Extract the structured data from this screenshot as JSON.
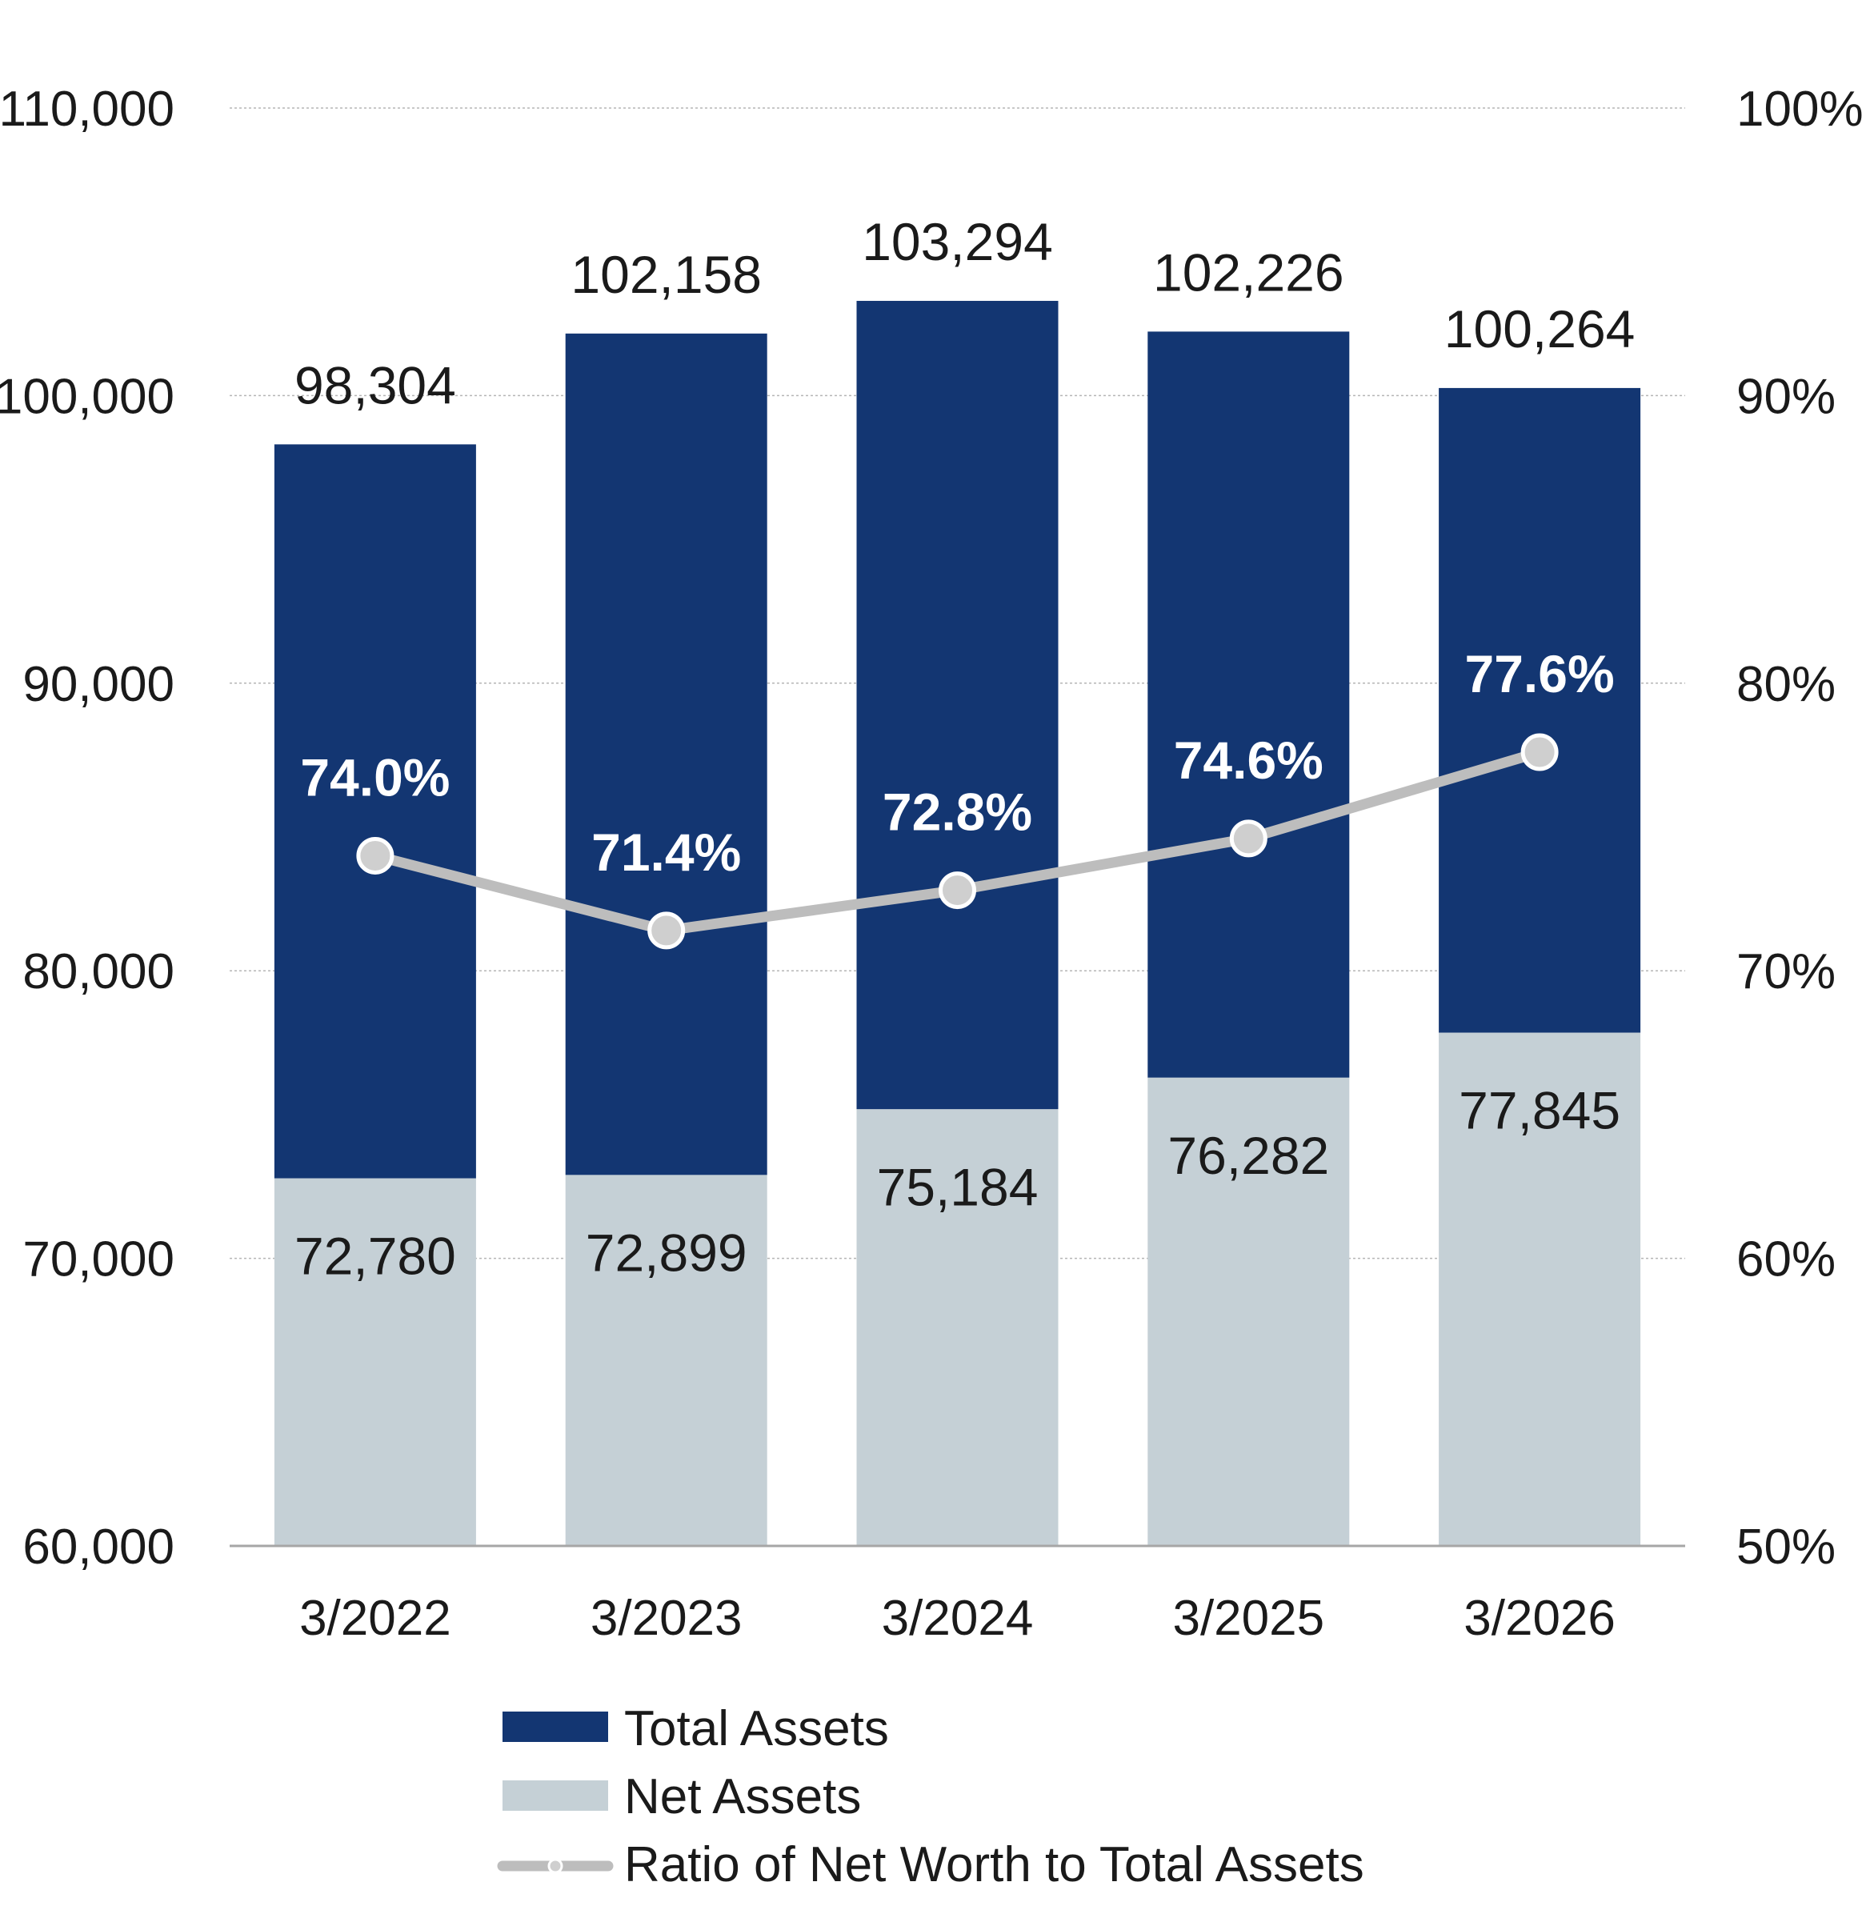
{
  "chart_data": {
    "type": "bar",
    "categories": [
      "3/2022",
      "3/2023",
      "3/2024",
      "3/2025",
      "3/2026"
    ],
    "series": [
      {
        "name": "Total Assets",
        "type": "bar",
        "axis": "left",
        "color": "#133672",
        "values": [
          98304,
          102158,
          103294,
          102226,
          100264
        ],
        "labels": [
          "98,304",
          "102,158",
          "103,294",
          "102,226",
          "100,264"
        ]
      },
      {
        "name": "Net Assets",
        "type": "bar",
        "axis": "left",
        "color": "#c5d0d6",
        "values": [
          72780,
          72899,
          75184,
          76282,
          77845
        ],
        "labels": [
          "72,780",
          "72,899",
          "75,184",
          "76,282",
          "77,845"
        ]
      },
      {
        "name": "Ratio of Net Worth to Total Assets",
        "type": "line",
        "axis": "right",
        "color": "#bdbdbd",
        "values": [
          74.0,
          71.4,
          72.8,
          74.6,
          77.6
        ],
        "labels": [
          "74.0%",
          "71.4%",
          "72.8%",
          "74.6%",
          "77.6%"
        ]
      }
    ],
    "y_left": {
      "range": [
        60000,
        110000
      ],
      "ticks": [
        "60,000",
        "70,000",
        "80,000",
        "90,000",
        "100,000",
        "110,000"
      ]
    },
    "y_right": {
      "range": [
        50,
        100
      ],
      "ticks": [
        "50%",
        "60%",
        "70%",
        "80%",
        "90%",
        "100%"
      ]
    },
    "grid": true,
    "legend_position": "bottom"
  }
}
